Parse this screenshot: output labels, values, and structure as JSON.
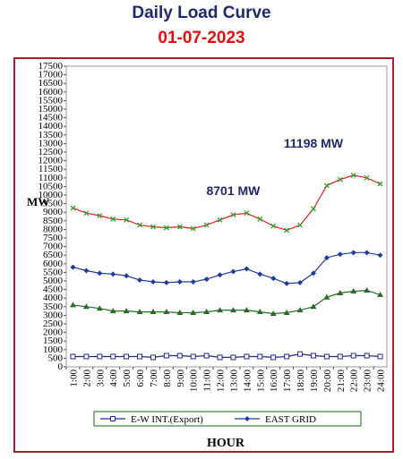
{
  "chart_data": {
    "type": "line",
    "title": "Daily Load Curve",
    "subtitle": "01-07-2023",
    "xlabel": "HOUR",
    "ylabel": "MW",
    "ylim": [
      0,
      17500
    ],
    "ytick_step": 500,
    "categories": [
      "1:00",
      "2:00",
      "3:00",
      "4:00",
      "5:00",
      "6:00",
      "7:00",
      "8:00",
      "9:00",
      "10:00",
      "11:00",
      "12:00",
      "13:00",
      "14:00",
      "15:00",
      "16:00",
      "17:00",
      "18:00",
      "19:00",
      "20:00",
      "21:00",
      "22:00",
      "23:00",
      "24:00"
    ],
    "series": [
      {
        "name": "",
        "color": "#2ea12e",
        "line_color": "#e02020",
        "marker": "x",
        "values": [
          9250,
          8950,
          8800,
          8600,
          8550,
          8250,
          8150,
          8100,
          8150,
          8050,
          8250,
          8550,
          8850,
          8950,
          8600,
          8200,
          7950,
          8250,
          9200,
          10550,
          10900,
          11150,
          11000,
          10650
        ]
      },
      {
        "name": "EAST GRID",
        "color": "#1f3a9c",
        "marker": "diamond",
        "values": [
          5800,
          5600,
          5450,
          5400,
          5300,
          5050,
          4950,
          4900,
          4950,
          4950,
          5100,
          5350,
          5550,
          5700,
          5400,
          5150,
          4850,
          4900,
          5450,
          6350,
          6550,
          6650,
          6650,
          6500
        ]
      },
      {
        "name": "",
        "color": "#2b6a2b",
        "marker": "triangle",
        "values": [
          3600,
          3500,
          3400,
          3250,
          3250,
          3200,
          3200,
          3200,
          3150,
          3150,
          3200,
          3300,
          3300,
          3300,
          3200,
          3100,
          3150,
          3300,
          3500,
          4050,
          4300,
          4400,
          4450,
          4200
        ]
      },
      {
        "name": "E-W INT.(Export)",
        "color": "#1f2a8c",
        "marker": "square",
        "values": [
          600,
          600,
          600,
          600,
          600,
          600,
          550,
          650,
          650,
          600,
          650,
          550,
          550,
          600,
          600,
          550,
          600,
          750,
          650,
          600,
          600,
          650,
          650,
          600
        ]
      }
    ],
    "annotations": [
      {
        "text": "8701 MW",
        "x": "13:00",
        "y": 10000
      },
      {
        "text": "11198 MW",
        "x": "19:00",
        "y": 12750
      }
    ],
    "legend": {
      "position": "bottom",
      "entries": [
        "E-W INT.(Export)",
        "EAST GRID"
      ]
    },
    "grid": false
  }
}
